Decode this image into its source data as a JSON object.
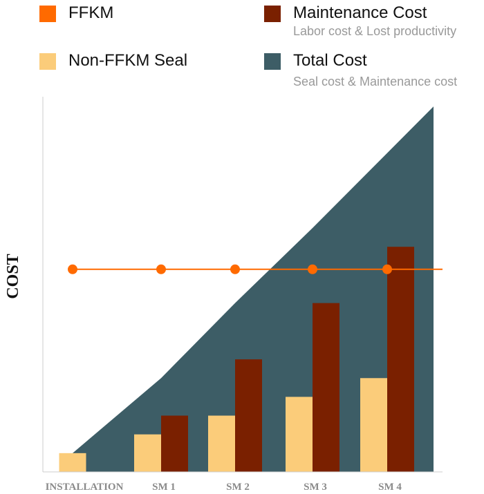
{
  "legend": [
    {
      "label": "FFKM",
      "sub": "",
      "color": "#ff6a00"
    },
    {
      "label": "Maintenance Cost",
      "sub": "Labor cost & Lost productivity",
      "color": "#7a2000"
    },
    {
      "label": "Non-FFKM Seal",
      "sub": "",
      "color": "#fbcc7a"
    },
    {
      "label": "Total Cost",
      "sub": "Seal cost & Maintenance cost",
      "color": "#3d5d66"
    }
  ],
  "chart_data": {
    "type": "bar",
    "ylabel": "COST",
    "xlabel": "",
    "categories": [
      "INSTALLATION",
      "SM 1",
      "SM 2",
      "SM 3",
      "SM 4"
    ],
    "ylim": [
      0,
      100
    ],
    "grid": false,
    "legend_position": "top",
    "series": [
      {
        "name": "Non-FFKM Seal",
        "type": "bar",
        "values": [
          5,
          10,
          15,
          20,
          25
        ],
        "color": "#fbcc7a"
      },
      {
        "name": "Maintenance Cost",
        "type": "bar",
        "values": [
          0,
          15,
          30,
          45,
          60
        ],
        "color": "#7a2000"
      },
      {
        "name": "Total Cost",
        "type": "area",
        "values": [
          5,
          25,
          45,
          65,
          85
        ],
        "color": "#3d5d66"
      },
      {
        "name": "FFKM",
        "type": "line",
        "values": [
          54,
          54,
          54,
          54,
          54
        ],
        "color": "#ff6a00"
      }
    ]
  }
}
